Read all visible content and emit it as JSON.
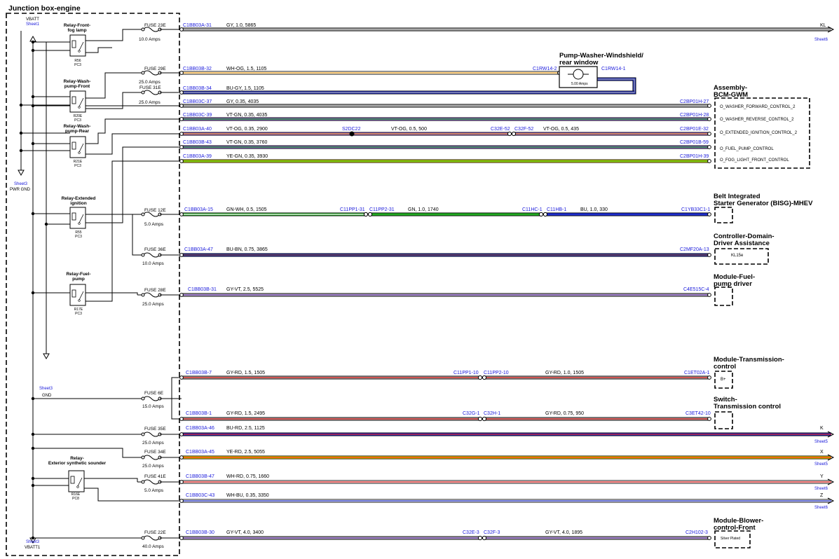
{
  "junction_box": {
    "title": "Junction box-engine",
    "vbatt_top": "VBATT",
    "vbatt_top_sheet": "Sheet1",
    "pwr_gnd_sheet": "Sheet3",
    "pwr_gnd": "PWR GND",
    "gnd_sheet": "Sheet3",
    "gnd": "GND",
    "vbatt1_sheet": "Sheet3",
    "vbatt1": "VBATT1"
  },
  "relays": [
    {
      "name_l1": "Relay-Front-",
      "name_l2": "fog lamp",
      "ref": "R56",
      "pos": "PC3"
    },
    {
      "name_l1": "Relay-Wash-",
      "name_l2": "pump-Front",
      "ref": "R20E",
      "pos": "PC3"
    },
    {
      "name_l1": "Relay-Wash-",
      "name_l2": "pump-Rear",
      "ref": "R21E",
      "pos": "PC3"
    },
    {
      "name_l1": "Relay-Extended",
      "name_l2": "ignition",
      "ref": "R55",
      "pos": "PC3"
    },
    {
      "name_l1": "Relay-Fuel-",
      "name_l2": "pump",
      "ref": "R17E",
      "pos": "PC3"
    },
    {
      "name_l1": "Relay-",
      "name_l2": "Exterior synthetic sounder",
      "ref": "R16E",
      "pos": "PC8"
    }
  ],
  "fuses": [
    {
      "name": "FUSE 23E",
      "rating": "10.0 Amps"
    },
    {
      "name": "FUSE 29E",
      "rating": "25.0 Amps"
    },
    {
      "name": "FUSE 31E",
      "rating": "25.0 Amps"
    },
    {
      "name": "FUSE 12E",
      "rating": "5.0 Amps"
    },
    {
      "name": "FUSE 36E",
      "rating": "10.0 Amps"
    },
    {
      "name": "FUSE 28E",
      "rating": "25.0 Amps"
    },
    {
      "name": "FUSE 6E",
      "rating": "15.0 Amps"
    },
    {
      "name": "FUSE 35E",
      "rating": "25.0 Amps"
    },
    {
      "name": "FUSE 34E",
      "rating": "25.0 Amps"
    },
    {
      "name": "FUSE 41E",
      "rating": "5.0 Amps"
    },
    {
      "name": "FUSE 22E",
      "rating": "40.0 Amps"
    }
  ],
  "wires": [
    {
      "conn": "C1BB03A-31",
      "spec": "GY,  1.0,  5865",
      "end_label": "KL",
      "end_sheet": "Sheet6"
    },
    {
      "conn": "C1BB03B-32",
      "spec": "WH-OG,  1.5,  1105",
      "end_conn": "C1RW14-2"
    },
    {
      "conn": "C1BB03B-34",
      "spec": "BU-GY,  1.5,  1105",
      "end_conn": "C1RW14-1"
    },
    {
      "conn": "C1BB03C-37",
      "spec": "GY,  0.35,  4035",
      "end_conn": "C2BP01H-27"
    },
    {
      "conn": "C1BB03C-39",
      "spec": "VT-GN,  0.35,  4035",
      "end_conn": "C2BP01H-28"
    },
    {
      "conn": "C1BB03A-40",
      "spec": "VT-OG,  0.35,  2900",
      "splice": "S2DC22",
      "mid_spec": "VT-OG,  0.5,  500",
      "mid_conn_a": "C32E-52",
      "mid_conn_b": "C32F-52",
      "spec2": "VT-OG,  0.5,  435",
      "end_conn": "C2BP01E-32"
    },
    {
      "conn": "C1BB03B-43",
      "spec": "VT-GN,  0.35,  3760",
      "end_conn": "C2BP01B-59"
    },
    {
      "conn": "C1BB03A-39",
      "spec": "YE-GN,  0.35,  3930",
      "end_conn": "C2BP01H-39"
    },
    {
      "conn": "C1BB03A-15",
      "spec": "GN-WH,  0.5,  1505",
      "mid_conn_a": "C11PP1-31",
      "mid_conn_b": "C11PP2-31",
      "mid_spec": "GN,  1.0,  1740",
      "mid2_conn_a": "C11HC-1",
      "mid2_conn_b": "C11HB-1",
      "spec2": "BU,  1.0,  330",
      "end_conn": "C1YB33C1-1"
    },
    {
      "conn": "C1BB03A-47",
      "spec": "BU-BN,  0.75,  3865",
      "end_conn": "C2MF20A-13"
    },
    {
      "conn": "C1BB03B-31",
      "spec": "GY-VT,  2.5,  5525",
      "end_conn": "C4E515C-4"
    },
    {
      "conn": "C1BB03B-7",
      "spec": "GY-RD,  1.5,  1505",
      "mid_conn_a": "C11PP1-10",
      "mid_conn_b": "C11PP2-10",
      "spec2": "GY-RD,  1.0,  1505",
      "end_conn": "C1ET02A-1"
    },
    {
      "conn": "C1BB03B-1",
      "spec": "GY-RD,  1.5,  2495",
      "mid_conn_a": "C32G-1",
      "mid_conn_b": "C32H-1",
      "spec2": "GY-RD,  0.75,  950",
      "end_conn": "C3ET42-10"
    },
    {
      "conn": "C1BB03A-46",
      "spec": "BU-RD,  2.5,  1125",
      "end_label": "K",
      "end_sheet": "Sheet5"
    },
    {
      "conn": "C1BB03A-45",
      "spec": "YE-RD,  2.5,  5055",
      "end_label": "X",
      "end_sheet": "Sheet5"
    },
    {
      "conn": "C1BB03B-47",
      "spec": "WH-RD,  0.75,  1660",
      "end_label": "Y",
      "end_sheet": "Sheet6"
    },
    {
      "conn": "C1BB03C-43",
      "spec": "WH-BU,  0.35,  3350",
      "end_label": "Z",
      "end_sheet": "Sheet6"
    },
    {
      "conn": "C1BB03B-30",
      "spec": "GY-VT,  4.0,  3400",
      "mid_conn_a": "C32E-3",
      "mid_conn_b": "C32F-3",
      "spec2": "GY-VT,  4.0,  1895",
      "end_conn": "C2H102-3"
    }
  ],
  "components": {
    "pump": {
      "title_l1": "Pump-Washer-Windshield/",
      "title_l2": "rear window",
      "rating": "5.00 Amps"
    },
    "bcm": {
      "title_l1": "Assembly-",
      "title_l2": "BCM-GWM",
      "pins": [
        "O_WASHER_FORWARD_CONTROL_2",
        "O_WASHER_REVERSE_CONTROL_2",
        "O_EXTENDED_IGNITION_CONTROL_2",
        "O_FUEL_PUMP_CONTROL",
        "O_FOG_LIGHT_FRONT_CONTROL"
      ]
    },
    "bisg": {
      "title_l1": "Belt Integrated",
      "title_l2": "Starter Generator (BISG)-MHEV"
    },
    "cdda": {
      "title_l1": "Controller-Domain-",
      "title_l2": "Driver Assistance",
      "pin": "KL15e"
    },
    "fpd": {
      "title_l1": "Module-Fuel-",
      "title_l2": "pump driver"
    },
    "tcm": {
      "title_l1": "Module-Transmission-",
      "title_l2": "control",
      "pin": "B+"
    },
    "tsw": {
      "title_l1": "Switch-",
      "title_l2": "Transmission control"
    },
    "blower": {
      "title_l1": "Module-Blower-",
      "title_l2": "control-Front",
      "pin": "Silver Plated"
    }
  },
  "colors": {
    "GY": "#a9a9a9",
    "WH": "#ffffff",
    "OG": "#f5a623",
    "BU": "#1f2ecc",
    "VT": "#8e57d6",
    "GN": "#22aa22",
    "YE": "#f2e600",
    "RD": "#e8211d",
    "BN": "#8b4a1a"
  }
}
